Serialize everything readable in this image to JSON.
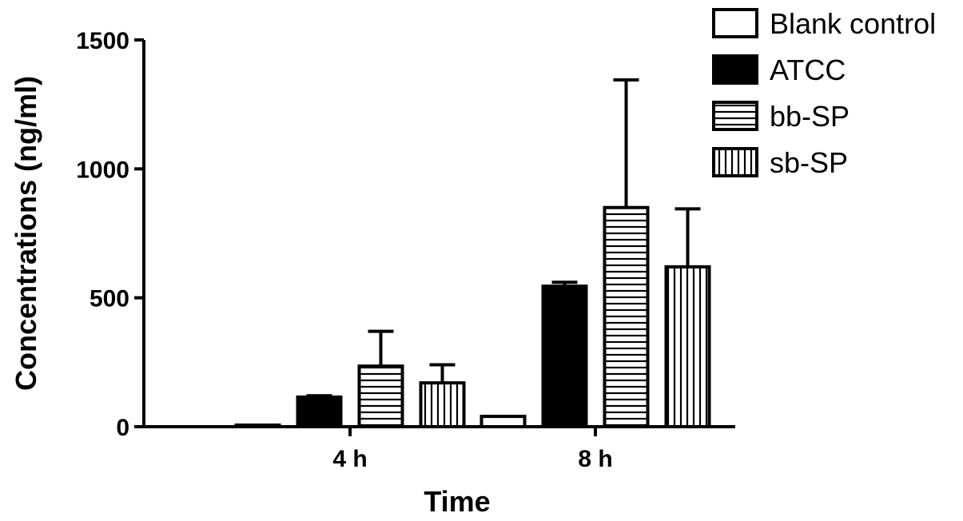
{
  "chart_data": {
    "type": "bar",
    "title": "",
    "xlabel": "Time",
    "ylabel": "Concentrations (ng/ml)",
    "categories": [
      "4 h",
      "8 h"
    ],
    "ylim": [
      0,
      1500
    ],
    "yticks": [
      0,
      500,
      1000,
      1500
    ],
    "grid": false,
    "legend_position": "top-right",
    "series": [
      {
        "name": "Blank control",
        "pattern": "empty",
        "values": [
          5,
          40
        ],
        "errors": [
          0,
          0
        ]
      },
      {
        "name": "ATCC",
        "pattern": "solid",
        "values": [
          115,
          545
        ],
        "errors": [
          5,
          15
        ]
      },
      {
        "name": "bb-SP",
        "pattern": "horizontal",
        "values": [
          235,
          850
        ],
        "errors": [
          135,
          495
        ]
      },
      {
        "name": "sb-SP",
        "pattern": "vertical",
        "values": [
          170,
          620
        ],
        "errors": [
          70,
          225
        ]
      }
    ]
  }
}
